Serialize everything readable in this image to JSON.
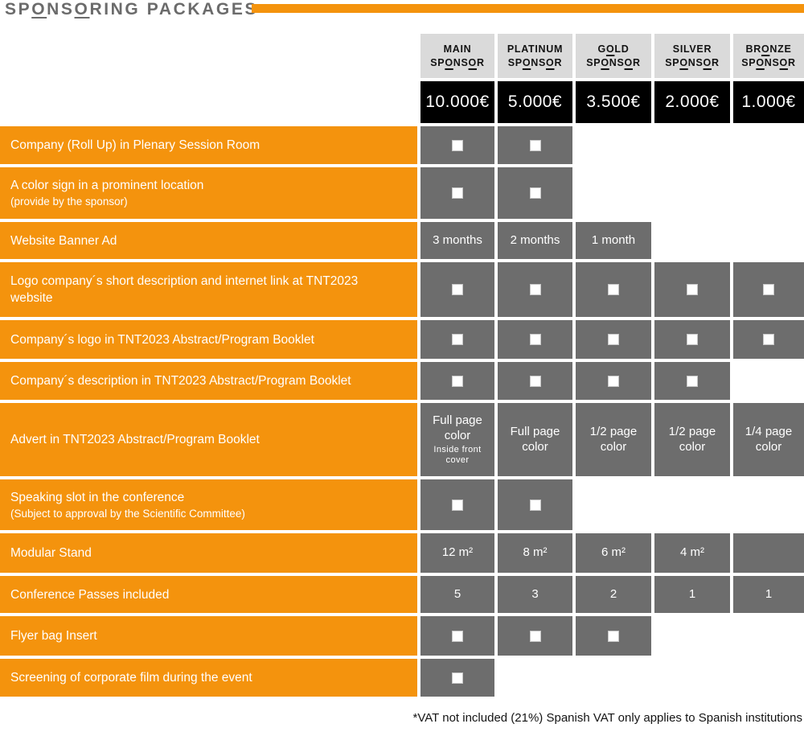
{
  "title": "SPONSORING PACKAGES",
  "colors": {
    "orange": "#F4930D",
    "cell_gray": "#6D6D6D",
    "header_gray": "#DADADA",
    "price_bg": "#000000",
    "title_gray": "#6B6B6B"
  },
  "columns": [
    {
      "id": "main-sponsor",
      "label": "MAIN SPONSOR",
      "price": "10.000€"
    },
    {
      "id": "platinum-sponsor",
      "label": "PLATINUM SPONSOR",
      "price": "5.000€"
    },
    {
      "id": "gold-sponsor",
      "label": "GOLD SPONSOR",
      "price": "3.500€"
    },
    {
      "id": "silver-sponsor",
      "label": "SILVER SPONSOR",
      "price": "2.000€"
    },
    {
      "id": "bronze-sponsor",
      "label": "BRONZE SPONSOR",
      "price": "1.000€"
    }
  ],
  "rows": [
    {
      "label": "Company (Roll Up) in Plenary Session Room",
      "cells": [
        {
          "mark": true
        },
        {
          "mark": true
        },
        null,
        null,
        null
      ]
    },
    {
      "label": "A color sign in a prominent location",
      "sublabel": "(provide by the sponsor)",
      "cells": [
        {
          "mark": true
        },
        {
          "mark": true
        },
        null,
        null,
        null
      ]
    },
    {
      "label": "Website Banner Ad",
      "cells": [
        {
          "text": "3 months"
        },
        {
          "text": "2 months"
        },
        {
          "text": "1 month"
        },
        null,
        null
      ]
    },
    {
      "label": "Logo company´s short description and internet link at TNT2023 website",
      "cells": [
        {
          "mark": true
        },
        {
          "mark": true
        },
        {
          "mark": true
        },
        {
          "mark": true
        },
        {
          "mark": true
        }
      ]
    },
    {
      "label": "Company´s logo in TNT2023 Abstract/Program Booklet",
      "cells": [
        {
          "mark": true
        },
        {
          "mark": true
        },
        {
          "mark": true
        },
        {
          "mark": true
        },
        {
          "mark": true
        }
      ]
    },
    {
      "label": "Company´s description in TNT2023 Abstract/Program Booklet",
      "cells": [
        {
          "mark": true
        },
        {
          "mark": true
        },
        {
          "mark": true
        },
        {
          "mark": true
        },
        null
      ]
    },
    {
      "label": "Advert in TNT2023 Abstract/Program Booklet",
      "cells": [
        {
          "text": "Full page color",
          "subtext": "Inside front cover"
        },
        {
          "text": "Full page color"
        },
        {
          "text": "1/2 page color"
        },
        {
          "text": "1/2 page color"
        },
        {
          "text": "1/4 page color"
        }
      ]
    },
    {
      "label": "Speaking slot in the conference",
      "sublabel": "(Subject to approval by the Scientific Committee)",
      "cells": [
        {
          "mark": true
        },
        {
          "mark": true
        },
        null,
        null,
        null
      ]
    },
    {
      "label": "Modular Stand",
      "cells": [
        {
          "text": "12 m²"
        },
        {
          "text": "8 m²"
        },
        {
          "text": "6 m²"
        },
        {
          "text": "4 m²"
        },
        {
          "blank": true
        }
      ]
    },
    {
      "label": "Conference Passes included",
      "cells": [
        {
          "text": "5"
        },
        {
          "text": "3"
        },
        {
          "text": "2"
        },
        {
          "text": "1"
        },
        {
          "text": "1"
        }
      ]
    },
    {
      "label": "Flyer bag Insert",
      "cells": [
        {
          "mark": true
        },
        {
          "mark": true
        },
        {
          "mark": true
        },
        null,
        null
      ]
    },
    {
      "label": "Screening of corporate film during the event",
      "cells": [
        {
          "mark": true
        },
        null,
        null,
        null,
        null
      ]
    }
  ],
  "footnote": "*VAT not included (21%) Spanish VAT only applies to Spanish institutions"
}
